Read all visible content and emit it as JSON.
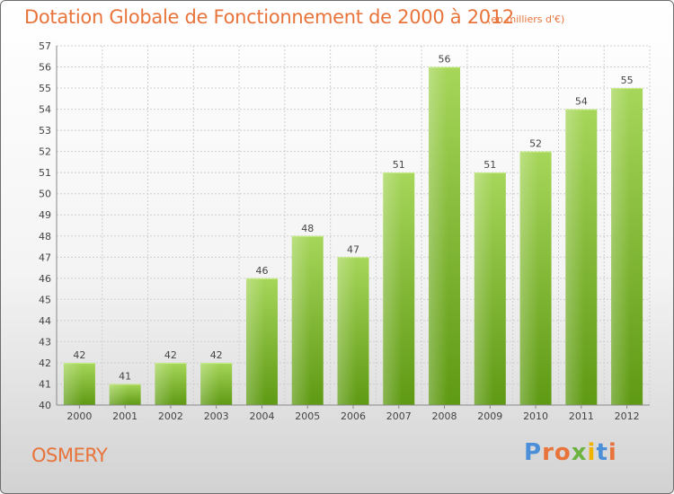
{
  "title": "Dotation Globale de Fonctionnement de 2000 à 2012",
  "unit_note": "(en milliers d'€)",
  "commune": "OSMERY",
  "logo": {
    "text": "Proxiti",
    "letters": [
      "P",
      "r",
      "o",
      "x",
      "i",
      "t",
      "i"
    ],
    "colors": [
      "#4a8fd8",
      "#e8743b",
      "#e8743b",
      "#6db33f",
      "#f0b400",
      "#4a8fd8",
      "#e8743b"
    ]
  },
  "colors": {
    "accent": "#e8743b",
    "bar_light": "#a6d65a",
    "bar_dark": "#5f9a14"
  },
  "chart_data": {
    "type": "bar",
    "title": "Dotation Globale de Fonctionnement de 2000 à 2012",
    "xlabel": "",
    "ylabel": "",
    "categories": [
      "2000",
      "2001",
      "2002",
      "2003",
      "2004",
      "2005",
      "2006",
      "2007",
      "2008",
      "2009",
      "2010",
      "2011",
      "2012"
    ],
    "values": [
      42,
      41,
      42,
      42,
      46,
      48,
      47,
      51,
      56,
      51,
      52,
      54,
      55
    ],
    "ylim": [
      40,
      57
    ],
    "yticks": [
      40,
      41,
      42,
      43,
      44,
      45,
      46,
      47,
      48,
      49,
      50,
      51,
      52,
      53,
      54,
      55,
      56,
      57
    ],
    "grid": true,
    "data_labels": true
  }
}
